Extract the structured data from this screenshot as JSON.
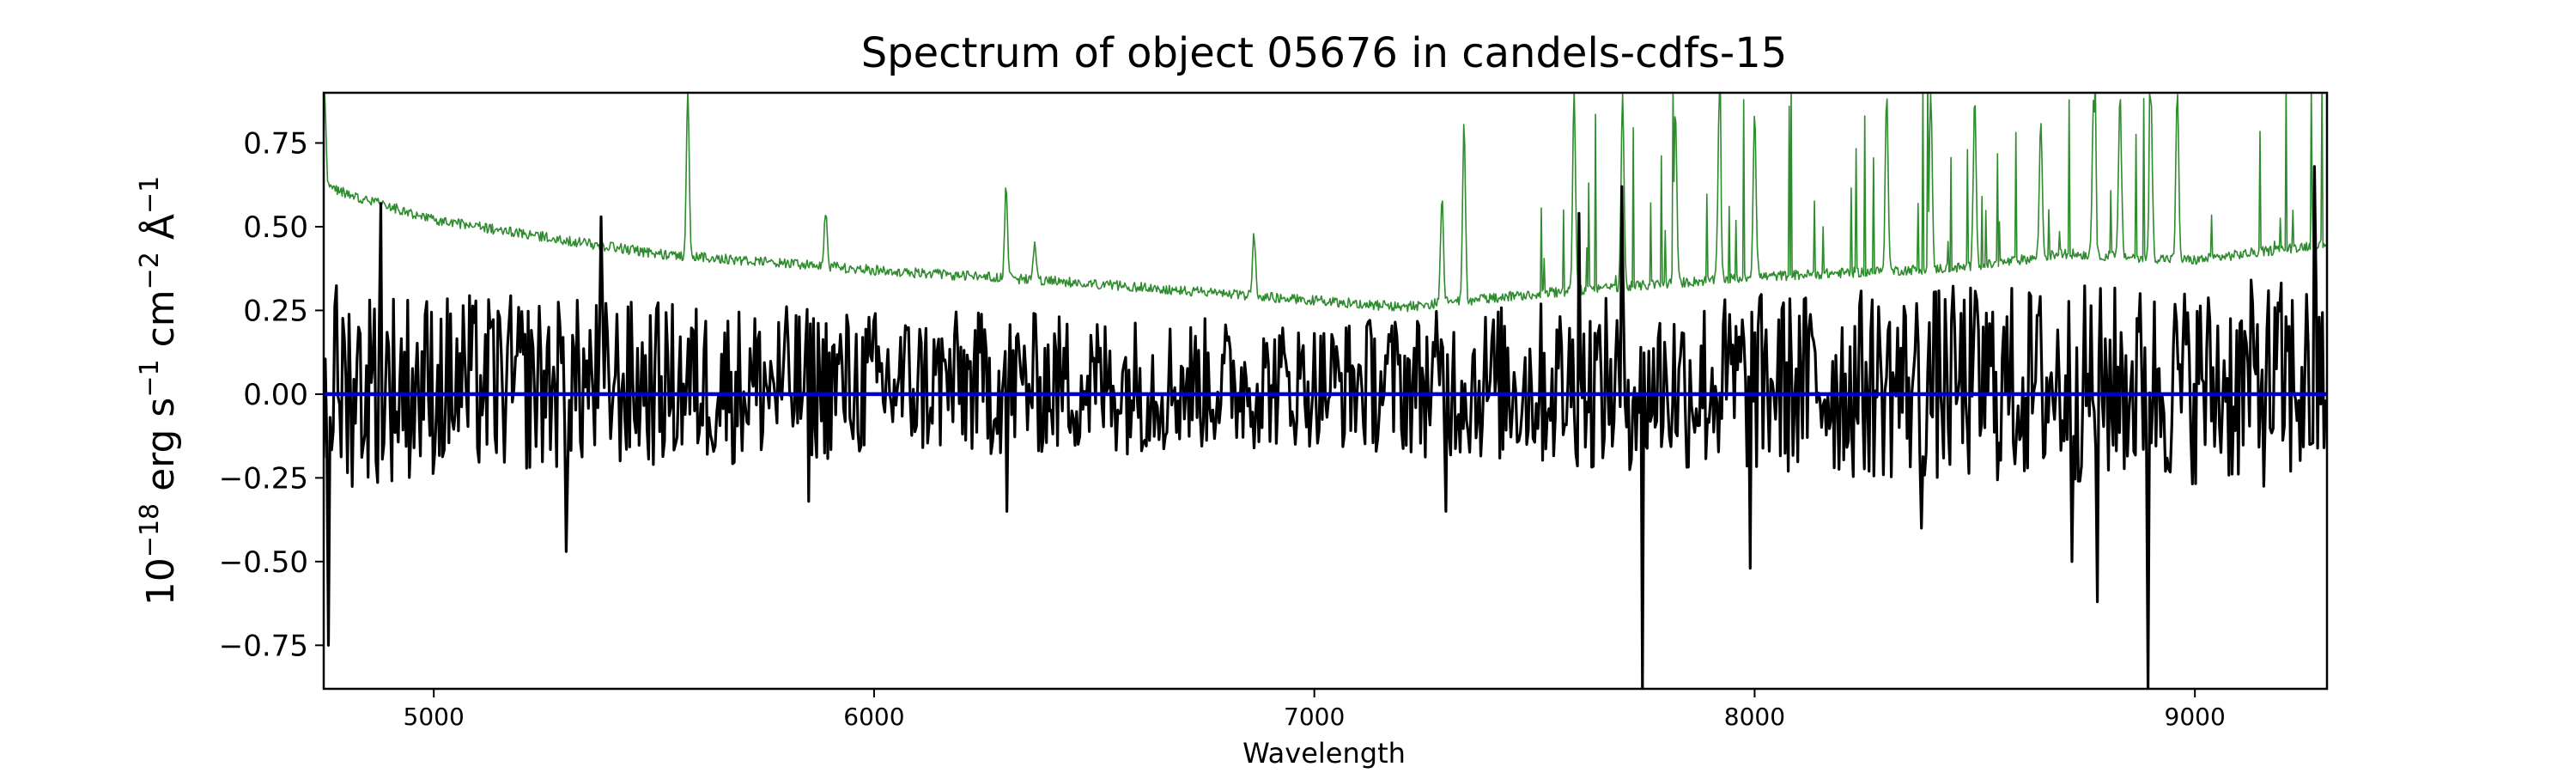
{
  "chart_data": {
    "type": "line",
    "title": "Spectrum of object 05676 in candels-cdfs-15",
    "xlabel": "Wavelength",
    "ylabel": {
      "parts": [
        {
          "text": "10",
          "style": "normal"
        },
        {
          "text": "−18",
          "style": "sup"
        },
        {
          "text": " erg s",
          "style": "normal"
        },
        {
          "text": "−1",
          "style": "sup"
        },
        {
          "text": " cm",
          "style": "normal"
        },
        {
          "text": "−2",
          "style": "sup"
        },
        {
          "text": " Å",
          "style": "normal"
        },
        {
          "text": "−1",
          "style": "sup"
        }
      ]
    },
    "xlim": [
      4750,
      9300
    ],
    "ylim": [
      -0.88,
      0.9
    ],
    "x_ticks": [
      5000,
      6000,
      7000,
      8000,
      9000
    ],
    "x_tick_labels": [
      "5000",
      "6000",
      "7000",
      "8000",
      "9000"
    ],
    "y_ticks": [
      -0.75,
      -0.5,
      -0.25,
      0.0,
      0.25,
      0.5,
      0.75
    ],
    "y_tick_labels": [
      "−0.75",
      "−0.50",
      "−0.25",
      "0.00",
      "0.25",
      "0.50",
      "0.75"
    ],
    "grid": false,
    "legend": "none",
    "series": [
      {
        "role": "flux",
        "color": "#000000",
        "x_start": 4750,
        "x_end": 9300,
        "envelope": [
          [
            4750,
            0.26
          ],
          [
            5000,
            0.22
          ],
          [
            5500,
            0.2
          ],
          [
            6000,
            0.18
          ],
          [
            6500,
            0.17
          ],
          [
            7000,
            0.15
          ],
          [
            7500,
            0.2
          ],
          [
            8000,
            0.22
          ],
          [
            8500,
            0.24
          ],
          [
            9000,
            0.24
          ],
          [
            9300,
            0.26
          ]
        ],
        "mean": 0.03,
        "spikes": [
          {
            "x": 4760,
            "y": -0.75
          },
          {
            "x": 4880,
            "y": 0.57
          },
          {
            "x": 5300,
            "y": -0.47
          },
          {
            "x": 5380,
            "y": 0.53
          },
          {
            "x": 5850,
            "y": -0.32
          },
          {
            "x": 6300,
            "y": -0.35
          },
          {
            "x": 7300,
            "y": -0.35
          },
          {
            "x": 7600,
            "y": 0.54
          },
          {
            "x": 7700,
            "y": 0.62
          },
          {
            "x": 7745,
            "y": -0.88
          },
          {
            "x": 7990,
            "y": -0.52
          },
          {
            "x": 8380,
            "y": -0.4
          },
          {
            "x": 8720,
            "y": -0.5
          },
          {
            "x": 8780,
            "y": -0.62
          },
          {
            "x": 8895,
            "y": -0.88
          },
          {
            "x": 9270,
            "y": 0.68
          },
          {
            "x": 9300,
            "y": -0.38
          }
        ]
      },
      {
        "role": "error",
        "color": "#2e8b2e",
        "baseline": [
          [
            4750,
            0.62
          ],
          [
            4800,
            0.6
          ],
          [
            5000,
            0.52
          ],
          [
            5500,
            0.42
          ],
          [
            6000,
            0.37
          ],
          [
            6500,
            0.33
          ],
          [
            7000,
            0.28
          ],
          [
            7200,
            0.26
          ],
          [
            7500,
            0.3
          ],
          [
            8000,
            0.35
          ],
          [
            8500,
            0.38
          ],
          [
            8700,
            0.42
          ],
          [
            9000,
            0.4
          ],
          [
            9300,
            0.45
          ]
        ],
        "peaks": [
          {
            "x": 4752,
            "y": 0.9
          },
          {
            "x": 5577,
            "y": 0.9
          },
          {
            "x": 5890,
            "y": 0.55
          },
          {
            "x": 6300,
            "y": 0.62
          },
          {
            "x": 6365,
            "y": 0.45
          },
          {
            "x": 6863,
            "y": 0.48
          },
          {
            "x": 7290,
            "y": 0.6
          },
          {
            "x": 7340,
            "y": 0.8
          },
          {
            "x": 7590,
            "y": 0.9
          },
          {
            "x": 7700,
            "y": 0.9
          },
          {
            "x": 7820,
            "y": 0.85
          },
          {
            "x": 7920,
            "y": 0.9
          },
          {
            "x": 8000,
            "y": 0.85
          },
          {
            "x": 8300,
            "y": 0.9
          },
          {
            "x": 8400,
            "y": 0.9
          },
          {
            "x": 8500,
            "y": 0.9
          },
          {
            "x": 8650,
            "y": 0.82
          },
          {
            "x": 8770,
            "y": 0.9
          },
          {
            "x": 8830,
            "y": 0.9
          },
          {
            "x": 8900,
            "y": 0.9
          },
          {
            "x": 8960,
            "y": 0.9
          }
        ]
      },
      {
        "role": "model",
        "color": "#0000cc",
        "x": [
          4750,
          9300
        ],
        "y": [
          0.0,
          0.0
        ]
      }
    ]
  }
}
